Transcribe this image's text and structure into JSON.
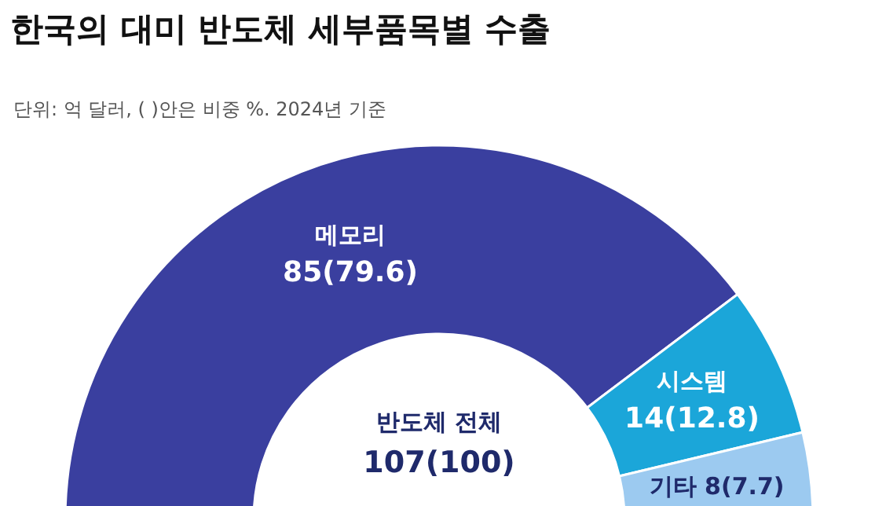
{
  "chart_data": {
    "type": "donut",
    "title": "한국의 대미 반도체 세부품목별 수출",
    "subtitle": "단위: 억 달러, ( )안은 비중 %. 2024년 기준",
    "categories": [
      "메모리",
      "시스템",
      "기타"
    ],
    "values": [
      85,
      14,
      8
    ],
    "value_labels": [
      "85(79.6)",
      "14(12.8)",
      "8(7.7)"
    ],
    "colors": [
      "#3a3f9f",
      "#1ba6d9",
      "#9ccaf0"
    ],
    "annotations": [
      "반도체 전체",
      "107(100)"
    ]
  }
}
